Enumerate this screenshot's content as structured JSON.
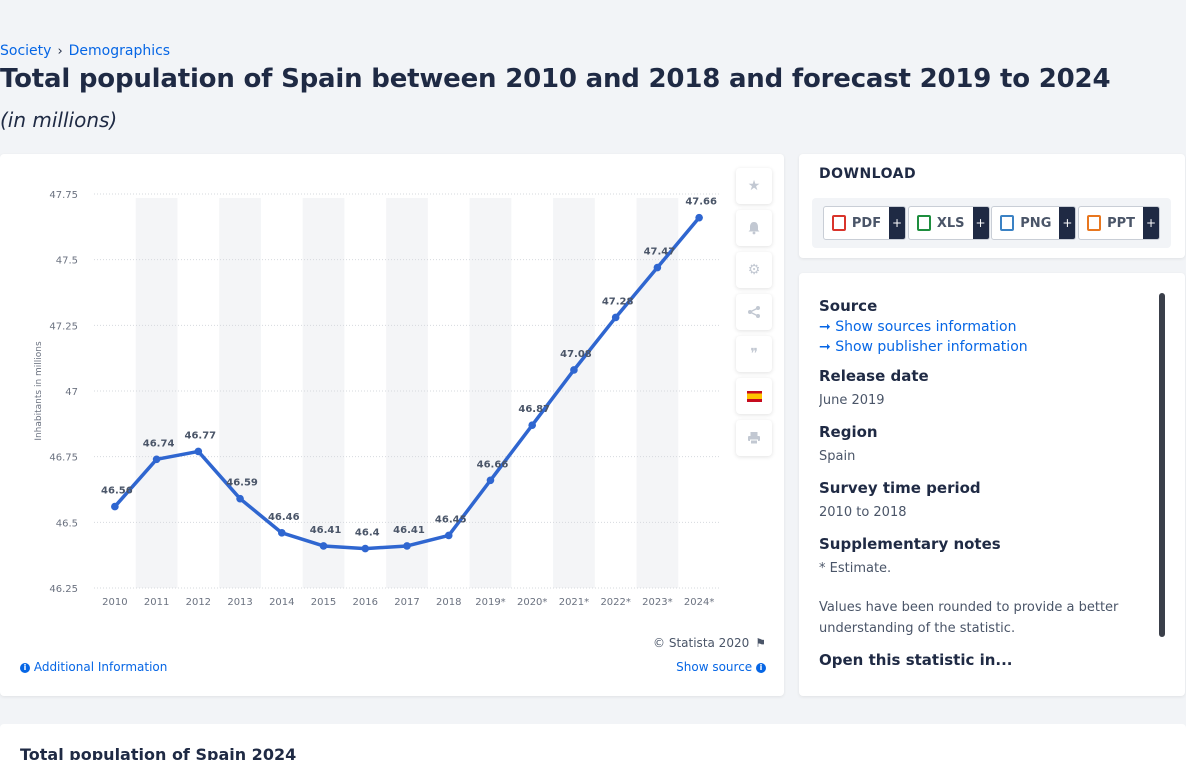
{
  "breadcrumb": {
    "item1": "Society",
    "sep": "›",
    "item2": "Demographics"
  },
  "page": {
    "title": "Total population of Spain between 2010 and 2018 and forecast 2019 to 2024",
    "subtitle": "(in millions)"
  },
  "chart_data": {
    "type": "line",
    "title": "",
    "xlabel": "",
    "ylabel": "Inhabitants in millions",
    "categories": [
      "2010",
      "2011",
      "2012",
      "2013",
      "2014",
      "2015",
      "2016",
      "2017",
      "2018",
      "2019*",
      "2020*",
      "2021*",
      "2022*",
      "2023*",
      "2024*"
    ],
    "values": [
      46.56,
      46.74,
      46.77,
      46.59,
      46.46,
      46.41,
      46.4,
      46.41,
      46.45,
      46.66,
      46.87,
      47.08,
      47.28,
      47.47,
      47.66
    ],
    "value_labels": [
      "46.56",
      "46.74",
      "46.77",
      "46.59",
      "46.46",
      "46.41",
      "46.4",
      "46.41",
      "46.45",
      "46.66",
      "46.87",
      "47.08",
      "47.28",
      "47.47",
      "47.66"
    ],
    "yticks": [
      "46.25",
      "46.5",
      "46.75",
      "47",
      "47.25",
      "47.5",
      "47.75"
    ],
    "ylim": [
      46.25,
      47.75
    ],
    "grid": true,
    "line_color": "#2f66d0",
    "band_color": "#f4f5f7"
  },
  "chart_footer": {
    "copyright": "© Statista 2020",
    "additional_info": "Additional Information",
    "show_source": "Show source"
  },
  "toolbar": [
    "star-icon",
    "bell-icon",
    "gear-icon",
    "share-icon",
    "quote-icon",
    "spain-flag-icon",
    "print-icon"
  ],
  "download": {
    "title": "DOWNLOAD",
    "buttons": [
      {
        "label": "PDF",
        "color": "#d9342b"
      },
      {
        "label": "XLS",
        "color": "#1e8e3e"
      },
      {
        "label": "PNG",
        "color": "#3b82c4"
      },
      {
        "label": "PPT",
        "color": "#e8771f"
      }
    ],
    "plus": "+"
  },
  "info": {
    "source_h": "Source",
    "source_link1": "Show sources information",
    "source_link2": "Show publisher information",
    "release_h": "Release date",
    "release_v": "June 2019",
    "region_h": "Region",
    "region_v": "Spain",
    "survey_h": "Survey time period",
    "survey_v": "2010 to 2018",
    "supp_h": "Supplementary notes",
    "supp_v1": "* Estimate.",
    "supp_v2": "Values have been rounded to provide a better understanding of the statistic.",
    "open_h": "Open this statistic in..."
  },
  "bottom": {
    "title": "Total population of Spain 2024"
  }
}
